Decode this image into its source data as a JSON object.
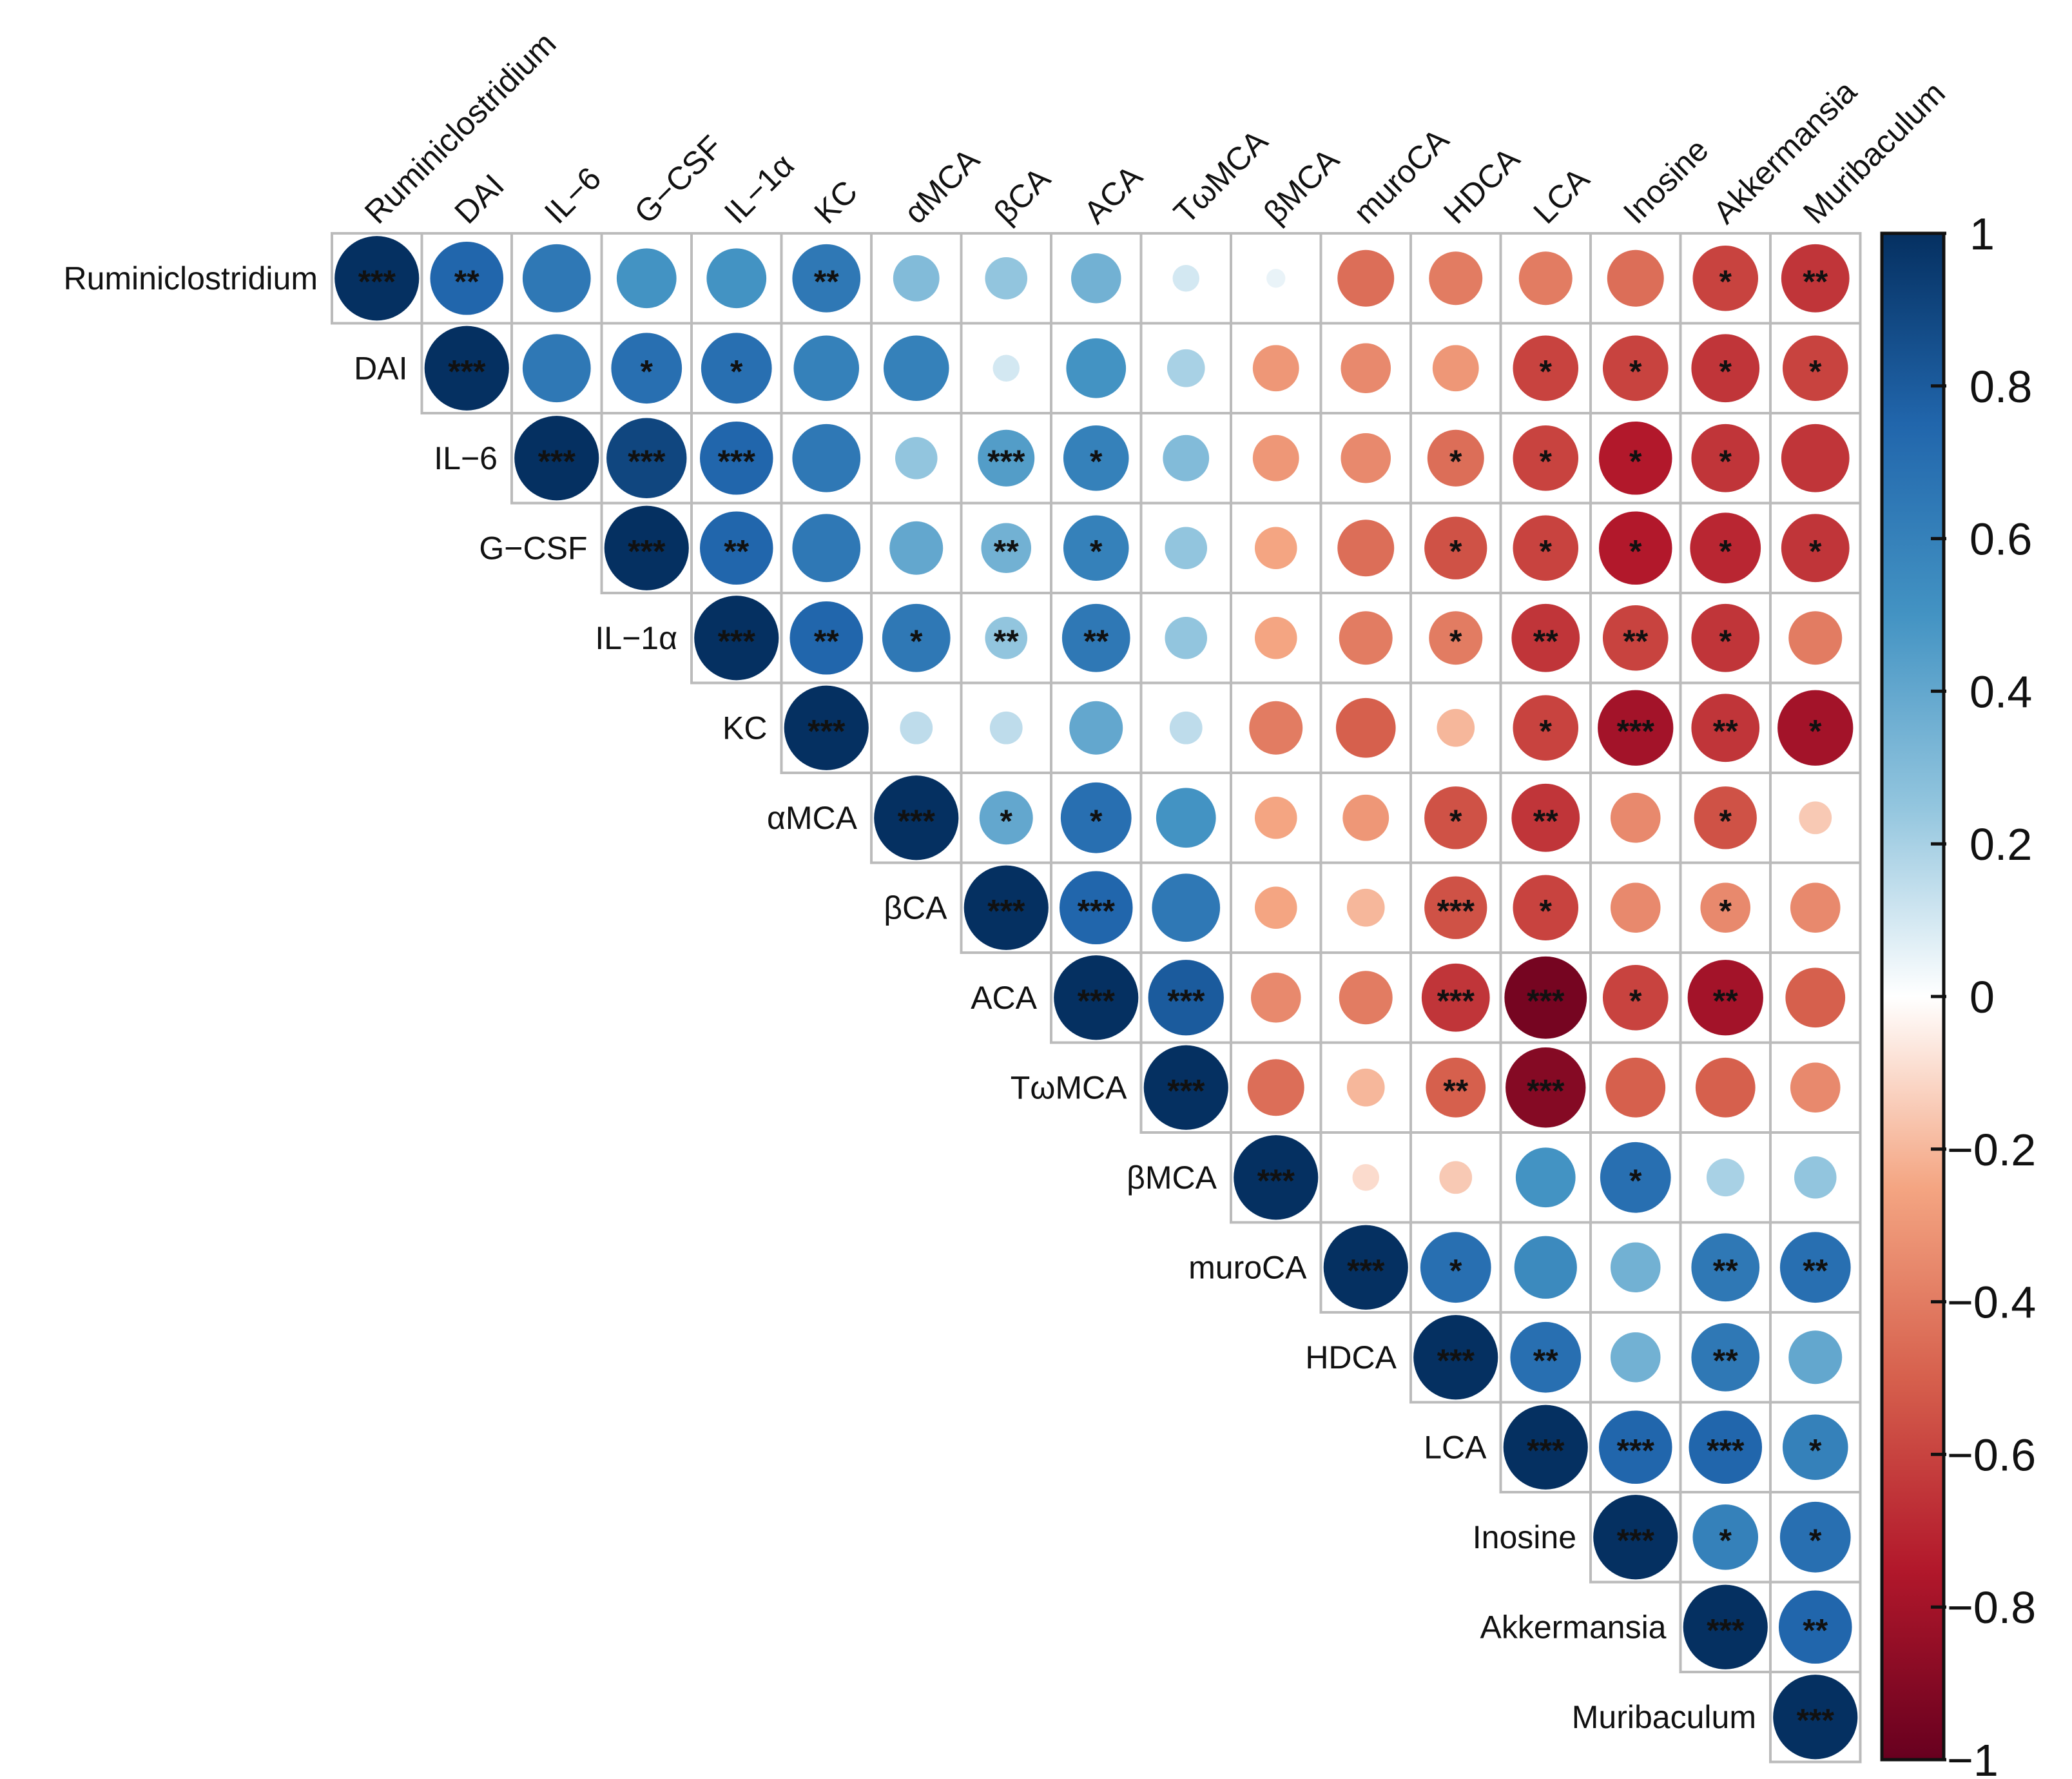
{
  "chart_data": {
    "type": "heatmap",
    "subtype": "correlation upper triangle (circle size and color = correlation)",
    "variables": [
      "Ruminiclostridium",
      "DAI",
      "IL−6",
      "G−CSF",
      "IL−1α",
      "KC",
      "αMCA",
      "βCA",
      "ACA",
      "TωMCA",
      "βMCA",
      "muroCA",
      "HDCA",
      "LCA",
      "Inosine",
      "Akkermansia",
      "Muribaculum"
    ],
    "matrix": [
      [
        1,
        0.75,
        0.65,
        0.5,
        0.5,
        0.65,
        0.3,
        0.25,
        0.35,
        0.1,
        0.05,
        -0.45,
        -0.4,
        -0.4,
        -0.45,
        -0.6,
        -0.65
      ],
      [
        0.75,
        1,
        0.65,
        0.7,
        0.7,
        0.6,
        0.6,
        0.1,
        0.5,
        0.2,
        -0.3,
        -0.35,
        -0.3,
        -0.6,
        -0.6,
        -0.65,
        -0.6
      ],
      [
        0.65,
        0.65,
        1,
        0.9,
        0.75,
        0.65,
        0.25,
        0.45,
        0.6,
        0.3,
        -0.3,
        -0.35,
        -0.45,
        -0.6,
        -0.75,
        -0.65,
        -0.65
      ],
      [
        0.5,
        0.7,
        0.9,
        1,
        0.75,
        0.65,
        0.4,
        0.35,
        0.6,
        0.25,
        -0.25,
        -0.45,
        -0.55,
        -0.6,
        -0.75,
        -0.7,
        -0.65
      ],
      [
        0.5,
        0.7,
        0.75,
        0.75,
        1,
        0.75,
        0.65,
        0.25,
        0.65,
        0.25,
        -0.25,
        -0.4,
        -0.4,
        -0.65,
        -0.6,
        -0.65,
        -0.4
      ],
      [
        0.65,
        0.6,
        0.65,
        0.65,
        0.75,
        1,
        0.15,
        0.15,
        0.4,
        0.15,
        -0.4,
        -0.5,
        -0.2,
        -0.6,
        -0.8,
        -0.65,
        -0.8
      ],
      [
        0.3,
        0.6,
        0.25,
        0.4,
        0.65,
        0.15,
        1,
        0.4,
        0.7,
        0.5,
        -0.25,
        -0.3,
        -0.55,
        -0.65,
        -0.35,
        -0.55,
        -0.15
      ],
      [
        0.25,
        0.1,
        0.45,
        0.35,
        0.25,
        0.15,
        0.4,
        1,
        0.75,
        0.65,
        -0.25,
        -0.2,
        -0.55,
        -0.6,
        -0.35,
        -0.35,
        -0.35
      ],
      [
        0.35,
        0.5,
        0.6,
        0.6,
        0.65,
        0.4,
        0.7,
        0.75,
        1,
        0.8,
        -0.35,
        -0.4,
        -0.65,
        -0.95,
        -0.6,
        -0.8,
        -0.5
      ],
      [
        0.1,
        0.2,
        0.3,
        0.25,
        0.25,
        0.15,
        0.5,
        0.65,
        0.8,
        1,
        -0.45,
        -0.2,
        -0.5,
        -0.9,
        -0.5,
        -0.5,
        -0.35
      ],
      [
        0.05,
        -0.3,
        -0.3,
        -0.25,
        -0.25,
        -0.4,
        -0.25,
        -0.25,
        -0.35,
        -0.45,
        1,
        -0.1,
        -0.15,
        0.5,
        0.7,
        0.2,
        0.25
      ],
      [
        -0.45,
        -0.35,
        -0.35,
        -0.45,
        -0.4,
        -0.5,
        -0.3,
        -0.2,
        -0.4,
        -0.2,
        -0.1,
        1,
        0.7,
        0.55,
        0.35,
        0.65,
        0.7
      ],
      [
        -0.4,
        -0.3,
        -0.45,
        -0.55,
        -0.4,
        -0.2,
        -0.55,
        -0.55,
        -0.65,
        -0.5,
        -0.15,
        0.7,
        1,
        0.7,
        0.35,
        0.65,
        0.4
      ],
      [
        -0.4,
        -0.6,
        -0.6,
        -0.6,
        -0.65,
        -0.6,
        -0.65,
        -0.6,
        -0.95,
        -0.9,
        0.5,
        0.55,
        0.7,
        1,
        0.75,
        0.75,
        0.6
      ],
      [
        -0.45,
        -0.6,
        -0.75,
        -0.75,
        -0.6,
        -0.8,
        -0.35,
        -0.35,
        -0.6,
        -0.5,
        0.7,
        0.35,
        0.35,
        0.75,
        1,
        0.6,
        0.7
      ],
      [
        -0.6,
        -0.65,
        -0.65,
        -0.7,
        -0.65,
        -0.65,
        -0.55,
        -0.35,
        -0.8,
        -0.5,
        0.2,
        0.65,
        0.65,
        0.75,
        0.6,
        1,
        0.75
      ],
      [
        -0.65,
        -0.6,
        -0.65,
        -0.65,
        -0.4,
        -0.8,
        -0.15,
        -0.35,
        -0.5,
        -0.35,
        0.25,
        0.7,
        0.4,
        0.6,
        0.7,
        0.75,
        1
      ]
    ],
    "significance": [
      [
        "***",
        "**",
        "",
        "",
        "",
        "**",
        "",
        "",
        "",
        "",
        "",
        "",
        "",
        "",
        "",
        "*",
        "**"
      ],
      [
        "**",
        "***",
        "",
        "*",
        "*",
        "",
        "",
        "",
        "",
        "",
        "",
        "",
        "",
        "*",
        "*",
        "*",
        "*"
      ],
      [
        "",
        "",
        "***",
        "***",
        "***",
        "",
        "",
        "***",
        "*",
        "",
        "",
        "",
        "*",
        "*",
        "*",
        "*",
        ""
      ],
      [
        "",
        "*",
        "***",
        "***",
        "**",
        "",
        "",
        "**",
        "*",
        "",
        "",
        "",
        "*",
        "*",
        "*",
        "*",
        "*"
      ],
      [
        "",
        "*",
        "***",
        "**",
        "***",
        "**",
        "*",
        "**",
        "**",
        "",
        "",
        "",
        "*",
        "**",
        "**",
        "*",
        ""
      ],
      [
        "**",
        "",
        "",
        "",
        "**",
        "***",
        "",
        "",
        "",
        "",
        "",
        "",
        "",
        "*",
        "***",
        "**",
        "*"
      ],
      [
        "",
        "",
        "",
        "",
        "*",
        "",
        "***",
        "*",
        "*",
        "",
        "",
        "",
        "*",
        "**",
        "",
        "*",
        ""
      ],
      [
        "",
        "",
        "***",
        "**",
        "**",
        "",
        "*",
        "***",
        "***",
        "",
        "",
        "",
        "***",
        "*",
        "",
        "*",
        ""
      ],
      [
        "",
        "",
        "*",
        "*",
        "**",
        "",
        "*",
        "***",
        "***",
        "***",
        "",
        "",
        "***",
        "***",
        "*",
        "**",
        ""
      ],
      [
        "",
        "",
        "",
        "",
        "",
        "",
        "",
        "",
        "***",
        "***",
        "",
        "",
        "**",
        "***",
        "",
        "",
        ""
      ],
      [
        "",
        "",
        "",
        "",
        "",
        "",
        "",
        "",
        "",
        "",
        "***",
        "",
        "",
        "",
        "*",
        "",
        ""
      ],
      [
        "",
        "",
        "",
        "",
        "",
        "",
        "",
        "",
        "",
        "",
        "",
        "***",
        "*",
        "",
        "",
        "**",
        "**"
      ],
      [
        "",
        "",
        "*",
        "*",
        "*",
        "",
        "*",
        "***",
        "***",
        "**",
        "",
        "*",
        "***",
        "**",
        "",
        "**",
        ""
      ],
      [
        "",
        "*",
        "*",
        "*",
        "**",
        "*",
        "**",
        "*",
        "***",
        "***",
        "",
        "",
        "**",
        "***",
        "***",
        "***",
        "*"
      ],
      [
        "",
        "*",
        "*",
        "*",
        "**",
        "***",
        "",
        "",
        "*",
        "",
        "*",
        "",
        "",
        "***",
        "***",
        "*",
        "*"
      ],
      [
        "*",
        "*",
        "*",
        "*",
        "*",
        "**",
        "*",
        "*",
        "**",
        "",
        "",
        "**",
        "**",
        "***",
        "*",
        "***",
        "**"
      ],
      [
        "**",
        "*",
        "",
        "*",
        "",
        "*",
        "",
        "",
        "",
        "",
        "",
        "**",
        "",
        "*",
        "*",
        "**",
        "***"
      ]
    ],
    "colorbar": {
      "ticks": [
        "1",
        "0.8",
        "0.6",
        "0.4",
        "0.2",
        "0",
        "−0.2",
        "−0.4",
        "−0.6",
        "−0.8",
        "−1"
      ],
      "tick_values": [
        1,
        0.8,
        0.6,
        0.4,
        0.2,
        0,
        -0.2,
        -0.4,
        -0.6,
        -0.8,
        -1
      ],
      "range": [
        -1,
        1
      ],
      "placement": "right"
    },
    "color_scale": {
      "stops": [
        {
          "v": -1.0,
          "c": "#67001f"
        },
        {
          "v": -0.75,
          "c": "#b2182b"
        },
        {
          "v": -0.5,
          "c": "#d6604d"
        },
        {
          "v": -0.25,
          "c": "#f4a582"
        },
        {
          "v": 0.0,
          "c": "#ffffff"
        },
        {
          "v": 0.25,
          "c": "#92c5de"
        },
        {
          "v": 0.5,
          "c": "#4393c3"
        },
        {
          "v": 0.75,
          "c": "#2166ac"
        },
        {
          "v": 1.0,
          "c": "#053061"
        }
      ]
    },
    "grid_color": "#bbbbbb",
    "title": "",
    "xlabel": "",
    "ylabel": ""
  }
}
